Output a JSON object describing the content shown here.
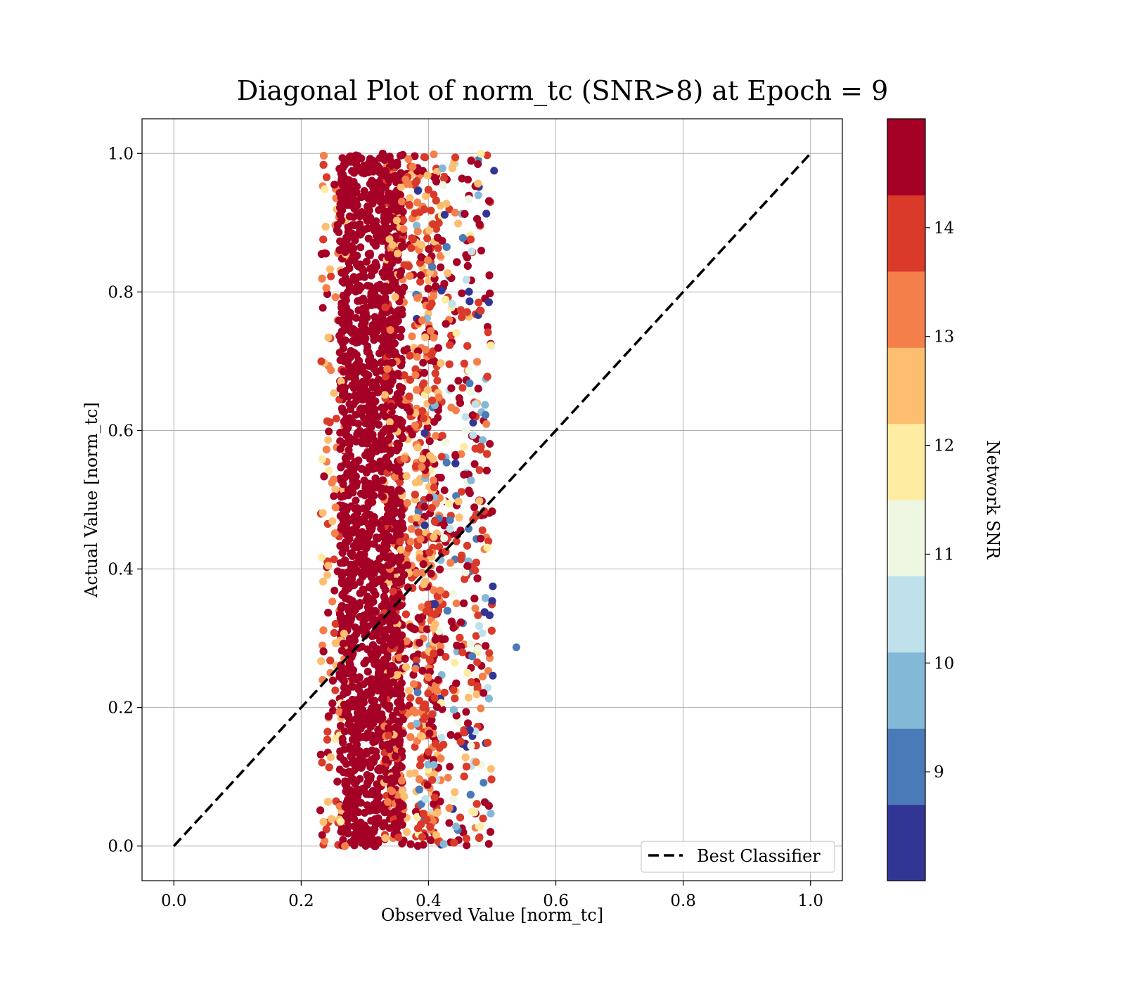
{
  "chart_data": {
    "type": "scatter",
    "title": "Diagonal Plot of norm_tc (SNR>8) at Epoch = 9",
    "xlabel": "Observed Value [norm_tc]",
    "ylabel": "Actual Value [norm_tc]",
    "xlim": [
      -0.05,
      1.05
    ],
    "ylim": [
      -0.05,
      1.05
    ],
    "xticks": [
      "0.0",
      "0.2",
      "0.4",
      "0.6",
      "0.8",
      "1.0"
    ],
    "yticks": [
      "0.0",
      "0.2",
      "0.4",
      "0.6",
      "0.8",
      "1.0"
    ],
    "grid": true,
    "legend": {
      "position": "lower right",
      "entries": [
        {
          "label": "Best Classifier",
          "style": "dashed",
          "color": "#000000"
        }
      ]
    },
    "reference_line": {
      "label": "Best Classifier",
      "x": [
        0.0,
        1.0
      ],
      "y": [
        0.0,
        1.0
      ]
    },
    "scatter_summary": {
      "observed_range": [
        0.23,
        0.54
      ],
      "actual_range": [
        0.0,
        1.0
      ],
      "core_observed_range": [
        0.26,
        0.36
      ],
      "outliers": [
        {
          "x": 0.538,
          "y": 0.287,
          "snr": 9.2
        },
        {
          "x": 0.5,
          "y": 0.354,
          "snr": 8.6
        },
        {
          "x": 0.501,
          "y": 0.375,
          "snr": 8.4
        },
        {
          "x": 0.501,
          "y": 0.246,
          "snr": 8.3
        },
        {
          "x": 0.503,
          "y": 0.975,
          "snr": 8.5
        },
        {
          "x": 0.234,
          "y": 0.777,
          "snr": 14.8
        },
        {
          "x": 0.234,
          "y": 0.481,
          "snr": 12.6
        },
        {
          "x": 0.233,
          "y": 0.016,
          "snr": 14.8
        }
      ]
    },
    "colorbar": {
      "label": "Network SNR",
      "ticks": [
        "9",
        "10",
        "11",
        "12",
        "13",
        "14"
      ],
      "range": [
        8.0,
        15.0
      ],
      "colors": [
        "#313695",
        "#4575b4",
        "#74add1",
        "#abd9e9",
        "#e0f3f8",
        "#ffffbf",
        "#fee090",
        "#fdae61",
        "#f46d43",
        "#d73027",
        "#a50026"
      ],
      "levels": [
        {
          "from": 8.0,
          "to": 8.7,
          "color": "#313695"
        },
        {
          "from": 8.7,
          "to": 9.4,
          "color": "#4a7ab7"
        },
        {
          "from": 9.4,
          "to": 10.1,
          "color": "#83b8d7"
        },
        {
          "from": 10.1,
          "to": 10.8,
          "color": "#bfe1eb"
        },
        {
          "from": 10.8,
          "to": 11.5,
          "color": "#eef7e1"
        },
        {
          "from": 11.5,
          "to": 12.2,
          "color": "#fdeca1"
        },
        {
          "from": 12.2,
          "to": 12.9,
          "color": "#fdbe70"
        },
        {
          "from": 12.9,
          "to": 13.6,
          "color": "#f57f4b"
        },
        {
          "from": 13.6,
          "to": 14.3,
          "color": "#d93a2a"
        },
        {
          "from": 14.3,
          "to": 15.0,
          "color": "#a50026"
        }
      ]
    }
  }
}
